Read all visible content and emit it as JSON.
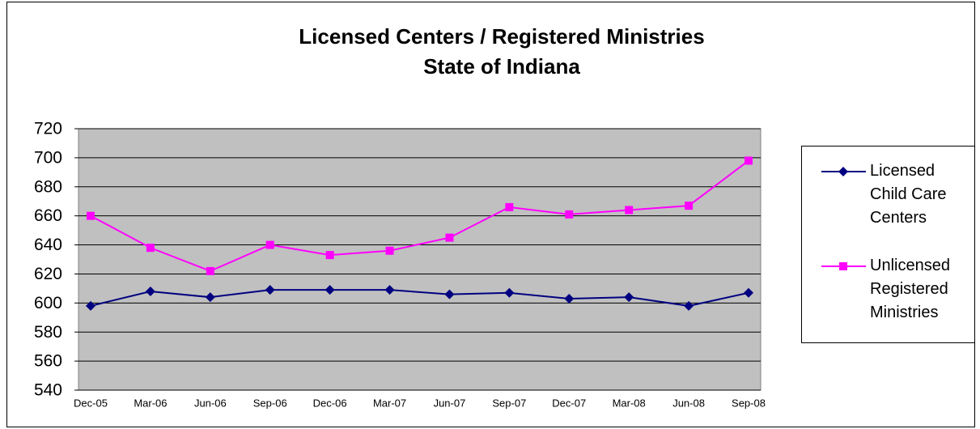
{
  "chart_data": {
    "type": "line",
    "title": [
      "Licensed Centers / Registered Ministries",
      "State of Indiana"
    ],
    "categories": [
      "Dec-05",
      "Mar-06",
      "Jun-06",
      "Sep-06",
      "Dec-06",
      "Mar-07",
      "Jun-07",
      "Sep-07",
      "Dec-07",
      "Mar-08",
      "Jun-08",
      "Sep-08"
    ],
    "series": [
      {
        "name": "Licensed Child Care Centers",
        "color": "#000080",
        "marker": "diamond",
        "values": [
          598,
          608,
          604,
          609,
          609,
          609,
          606,
          607,
          603,
          604,
          598,
          607
        ]
      },
      {
        "name": "Unlicensed Registered Ministries",
        "color": "#ff00ff",
        "marker": "square",
        "values": [
          660,
          638,
          622,
          640,
          633,
          636,
          645,
          666,
          661,
          664,
          667,
          698
        ]
      }
    ],
    "ylim": [
      540,
      720
    ],
    "yticks": [
      540,
      560,
      580,
      600,
      620,
      640,
      660,
      680,
      700,
      720
    ],
    "grid": true,
    "legend": "right"
  }
}
